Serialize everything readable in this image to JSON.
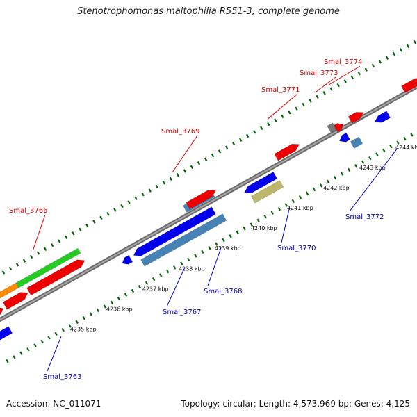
{
  "title": "Stenotrophomonas maltophilia R551-3, complete genome",
  "footer": {
    "accession": "Accession: NC_011071",
    "topology": "Topology: circular; Length: 4,573,969 bp; Genes: 4,125"
  },
  "colors": {
    "red": "#ee0000",
    "blue": "#0000ee",
    "steel_blue": "#4682b4",
    "green": "#22cc22",
    "orange": "#ff8c00",
    "gray": "#777777",
    "khaki": "#bdb76b",
    "tick_green": "#006600",
    "backbone": "#8a8a8a"
  },
  "position_scale": [
    {
      "kbp": 4235,
      "label": "4235 kbp"
    },
    {
      "kbp": 4236,
      "label": "4236 kbp"
    },
    {
      "kbp": 4237,
      "label": "4237 kbp"
    },
    {
      "kbp": 4238,
      "label": "4238 kbp"
    },
    {
      "kbp": 4239,
      "label": "4239 kbp"
    },
    {
      "kbp": 4240,
      "label": "4240 kbp"
    },
    {
      "kbp": 4241,
      "label": "4241 kbp"
    },
    {
      "kbp": 4242,
      "label": "4242 kbp"
    },
    {
      "kbp": 4243,
      "label": "4243 kbp"
    },
    {
      "kbp": 4244,
      "label": "4244 kbp"
    }
  ],
  "labels_top": [
    {
      "name": "Smal_3766"
    },
    {
      "name": "Smal_3769"
    },
    {
      "name": "Smal_3771"
    },
    {
      "name": "Smal_3773"
    },
    {
      "name": "Smal_3774"
    }
  ],
  "labels_bottom": [
    {
      "name": "Smal_3763"
    },
    {
      "name": "Smal_3767"
    },
    {
      "name": "Smal_3768"
    },
    {
      "name": "Smal_3770"
    },
    {
      "name": "Smal_3772"
    }
  ]
}
